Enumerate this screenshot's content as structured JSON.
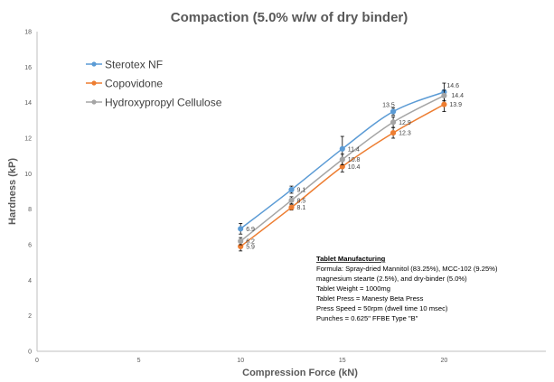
{
  "chart_data": {
    "type": "line",
    "title": "Compaction (5.0% w/w of dry binder)",
    "xlabel": "Compression Force (kN)",
    "ylabel": "Hardness (kP)",
    "xlim": [
      0,
      25
    ],
    "ylim": [
      0,
      18
    ],
    "x_ticks": [
      "0",
      "5",
      "10",
      "15",
      "20"
    ],
    "y_ticks": [
      "0",
      "2",
      "4",
      "6",
      "8",
      "10",
      "12",
      "14",
      "16",
      "18"
    ],
    "grid": false,
    "legend_position": "top-left",
    "series": [
      {
        "name": "Sterotex NF",
        "color": "#5b9bd5",
        "x": [
          10,
          12.5,
          15,
          17.5,
          20
        ],
        "values": [
          6.9,
          9.1,
          11.4,
          13.5,
          14.6
        ],
        "labels": [
          "6.9",
          "9.1",
          "11.4",
          "13.5",
          "14.6"
        ],
        "error": [
          0.3,
          0.2,
          0.7,
          0.2,
          0.5
        ]
      },
      {
        "name": "Copovidone",
        "color": "#ed7d31",
        "x": [
          10,
          12.5,
          15,
          17.5,
          20
        ],
        "values": [
          5.9,
          8.1,
          10.4,
          12.3,
          13.9
        ],
        "labels": [
          "5.9",
          "8.1",
          "10.4",
          "12.3",
          "13.9"
        ],
        "error": [
          0.25,
          0.15,
          0.3,
          0.3,
          0.4
        ]
      },
      {
        "name": "Hydroxypropyl Cellulose",
        "color": "#a5a5a5",
        "x": [
          10,
          12.5,
          15,
          17.5,
          20
        ],
        "values": [
          6.2,
          8.5,
          10.8,
          12.9,
          14.4
        ],
        "labels": [
          "6.2",
          "8.5",
          "10.8",
          "12.9",
          "14.4"
        ],
        "error": [
          0.2,
          0.2,
          0.3,
          0.3,
          0.3
        ]
      }
    ],
    "annotation": {
      "heading": "Tablet Manufacturing",
      "lines": [
        "Formula: Spray-dried Mannitol (83.25%), MCC-102 (9.25%)",
        "magnesium stearte (2.5%), and dry-binder (5.0%)",
        "Tablet Weight = 1000mg",
        "Tablet Press = Manesty Beta Press",
        "Press Speed = 50rpm (dwell time 10 msec)",
        "Punches = 0.625\" FFBE Type \"B\""
      ]
    }
  }
}
